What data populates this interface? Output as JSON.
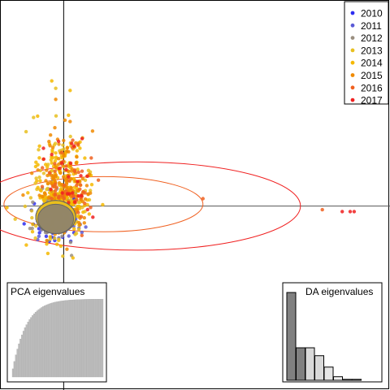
{
  "chart_data": {
    "type": "scatter",
    "description_free": true,
    "axes": {
      "x_range": [
        -1.6,
        8.2
      ],
      "y_range": [
        -5.0,
        5.6
      ],
      "zero_lines": true
    },
    "legend": {
      "placement": "top-right",
      "entries": [
        {
          "label": "2010",
          "color": "#2d2df0"
        },
        {
          "label": "2011",
          "color": "#5a5ad6"
        },
        {
          "label": "2012",
          "color": "#9a8f80"
        },
        {
          "label": "2013",
          "color": "#e8c020"
        },
        {
          "label": "2014",
          "color": "#f5b800"
        },
        {
          "label": "2015",
          "color": "#f08a00"
        },
        {
          "label": "2016",
          "color": "#f06020"
        },
        {
          "label": "2017",
          "color": "#f02020"
        }
      ]
    },
    "clusters": [
      {
        "group": "2010",
        "center": [
          -0.2,
          -0.4
        ],
        "spread": [
          0.55,
          0.45
        ],
        "n": 60
      },
      {
        "group": "2011",
        "center": [
          -0.2,
          -0.4
        ],
        "spread": [
          0.55,
          0.45
        ],
        "n": 60
      },
      {
        "group": "2012",
        "center": [
          -0.15,
          -0.3
        ],
        "spread": [
          0.55,
          0.5
        ],
        "n": 70
      },
      {
        "group": "2013",
        "center": [
          -0.1,
          0.2
        ],
        "spread": [
          0.6,
          0.9
        ],
        "n": 170
      },
      {
        "group": "2014",
        "center": [
          -0.1,
          0.3
        ],
        "spread": [
          0.6,
          1.0
        ],
        "n": 190
      },
      {
        "group": "2015",
        "center": [
          0.0,
          0.4
        ],
        "spread": [
          0.65,
          0.9
        ],
        "n": 160
      },
      {
        "group": "2016",
        "center": [
          0.1,
          0.3
        ],
        "spread": [
          0.6,
          0.7
        ],
        "n": 60
      },
      {
        "group": "2017",
        "center": [
          0.1,
          0.5
        ],
        "spread": [
          0.6,
          0.8
        ],
        "n": 25
      }
    ],
    "outliers": [
      {
        "group": "2016",
        "x": 3.5,
        "y": 0.2
      },
      {
        "group": "2016",
        "x": 6.5,
        "y": -0.1
      },
      {
        "group": "2017",
        "x": 7.0,
        "y": -0.15
      },
      {
        "group": "2017",
        "x": 7.2,
        "y": -0.15
      },
      {
        "group": "2017",
        "x": 7.3,
        "y": -0.15
      },
      {
        "group": "2017",
        "x": 0.2,
        "y": 1.7
      },
      {
        "group": "2017",
        "x": -0.3,
        "y": 1.4
      },
      {
        "group": "2015",
        "x": -0.2,
        "y": 2.9
      },
      {
        "group": "2014",
        "x": -0.3,
        "y": 3.4
      },
      {
        "group": "2013",
        "x": -0.2,
        "y": 3.2
      }
    ],
    "ellipses": [
      {
        "group": "2014",
        "center": [
          -0.2,
          -0.3
        ],
        "rx": 0.5,
        "ry": 0.45,
        "stroke": "#f5b800"
      },
      {
        "group": "2013",
        "center": [
          -0.2,
          -0.3
        ],
        "rx": 0.5,
        "ry": 0.45,
        "stroke": "#e8c020"
      },
      {
        "group": "2012",
        "center": [
          -0.2,
          -0.35
        ],
        "rx": 0.45,
        "ry": 0.4,
        "stroke": "#8a8070"
      },
      {
        "group": "2016",
        "center": [
          1.0,
          0.05
        ],
        "rx": 2.5,
        "ry": 0.75,
        "stroke": "#f06020"
      },
      {
        "group": "2017",
        "center": [
          1.85,
          0.0
        ],
        "rx": 4.1,
        "ry": 1.2,
        "stroke": "#f02020"
      }
    ],
    "insets": {
      "pca": {
        "title": "PCA eigenvalues",
        "bars": 60,
        "shape": "cumulative-saturating"
      },
      "da": {
        "title": "DA eigenvalues",
        "values": [
          1.0,
          0.37,
          0.37,
          0.28,
          0.15,
          0.04,
          0.01,
          0.01
        ]
      }
    }
  }
}
